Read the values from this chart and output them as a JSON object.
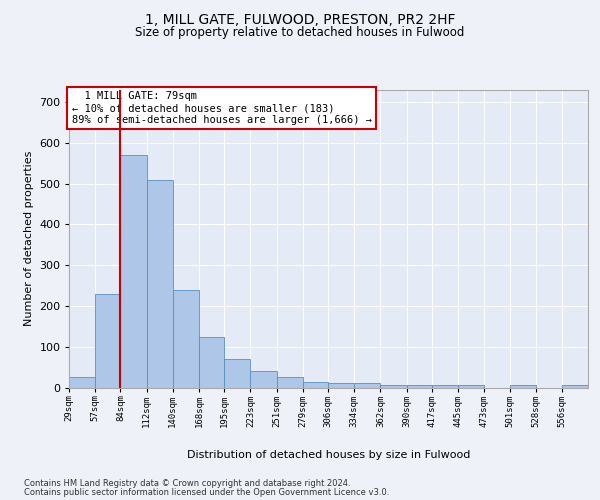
{
  "title_line1": "1, MILL GATE, FULWOOD, PRESTON, PR2 2HF",
  "title_line2": "Size of property relative to detached houses in Fulwood",
  "xlabel": "Distribution of detached houses by size in Fulwood",
  "ylabel": "Number of detached properties",
  "footer_line1": "Contains HM Land Registry data © Crown copyright and database right 2024.",
  "footer_line2": "Contains public sector information licensed under the Open Government Licence v3.0.",
  "annotation_line1": "  1 MILL GATE: 79sqm",
  "annotation_line2": "← 10% of detached houses are smaller (183)",
  "annotation_line3": "89% of semi-detached houses are larger (1,666) →",
  "bar_edges": [
    29,
    57,
    84,
    112,
    140,
    168,
    195,
    223,
    251,
    279,
    306,
    334,
    362,
    390,
    417,
    445,
    473,
    501,
    528,
    556,
    584
  ],
  "bar_heights": [
    26,
    230,
    570,
    510,
    240,
    123,
    70,
    40,
    26,
    14,
    10,
    10,
    5,
    5,
    6,
    5,
    0,
    5,
    0,
    5
  ],
  "bar_color": "#aec6e8",
  "bar_edge_color": "#5a8fc0",
  "red_line_x": 84,
  "ylim": [
    0,
    730
  ],
  "yticks": [
    0,
    100,
    200,
    300,
    400,
    500,
    600,
    700
  ],
  "background_color": "#eef2f8",
  "plot_bg_color": "#e4eaf6",
  "grid_color": "#ffffff",
  "annotation_box_color": "#ffffff",
  "annotation_box_edge": "#cc0000",
  "red_line_color": "#cc0000"
}
